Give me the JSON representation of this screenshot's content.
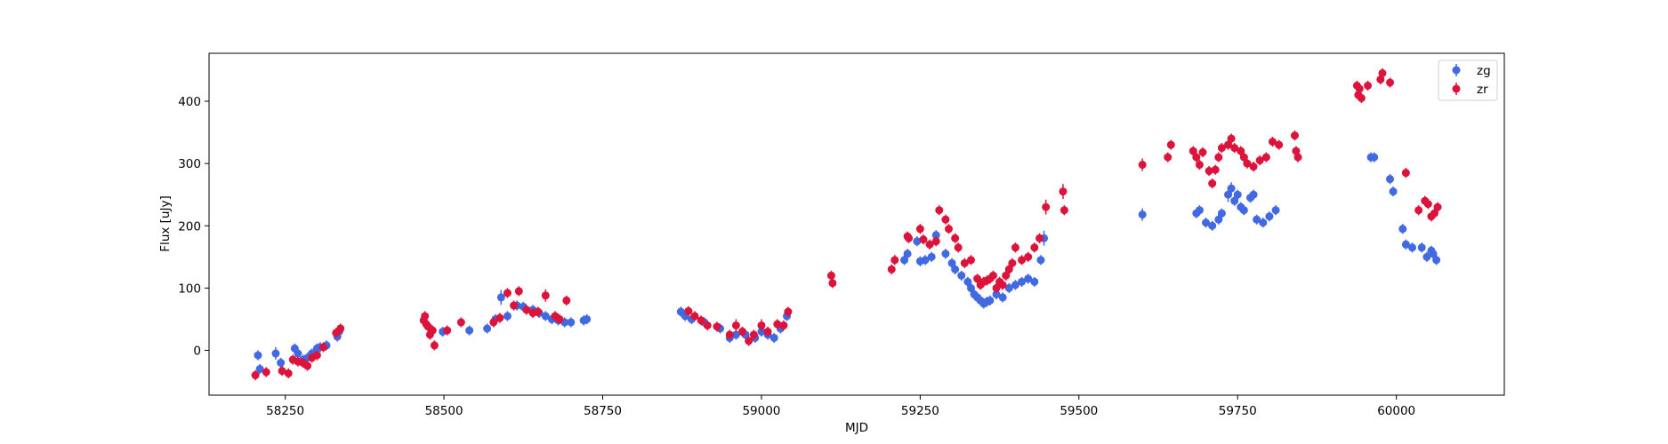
{
  "chart_data": {
    "type": "scatter",
    "title": "",
    "xlabel": "MJD",
    "ylabel": "Flux [uJy]",
    "xlim": [
      58130,
      60170
    ],
    "ylim": [
      -72,
      477
    ],
    "xticks": [
      58250,
      58500,
      58750,
      59000,
      59250,
      59500,
      59750,
      60000
    ],
    "yticks": [
      0,
      100,
      200,
      300,
      400
    ],
    "grid": false,
    "legend_position": "top-right",
    "series": [
      {
        "name": "zg",
        "color": "#4169e1",
        "marker": "circle-errorbar",
        "x": [
          58207,
          58210,
          58235,
          58243,
          58265,
          58270,
          58278,
          58285,
          58292,
          58300,
          58305,
          58315,
          58332,
          58335,
          58498,
          58540,
          58568,
          58581,
          58590,
          58600,
          58615,
          58625,
          58640,
          58650,
          58660,
          58670,
          58680,
          58690,
          58700,
          58720,
          58725,
          58873,
          58880,
          58890,
          58910,
          58935,
          58950,
          58960,
          58970,
          58975,
          58990,
          59000,
          59010,
          59020,
          59030,
          59040,
          59225,
          59230,
          59245,
          59250,
          59258,
          59268,
          59275,
          59290,
          59300,
          59305,
          59315,
          59325,
          59330,
          59335,
          59340,
          59345,
          59350,
          59355,
          59360,
          59370,
          59380,
          59390,
          59400,
          59410,
          59420,
          59430,
          59440,
          59445,
          59600,
          59685,
          59690,
          59700,
          59710,
          59720,
          59725,
          59735,
          59740,
          59745,
          59750,
          59755,
          59760,
          59770,
          59775,
          59780,
          59790,
          59800,
          59810,
          59960,
          59965,
          59990,
          59995,
          60010,
          60015,
          60025,
          60040,
          60048,
          60055,
          60058,
          60063
        ],
        "y": [
          -8,
          -30,
          -5,
          -20,
          3,
          -5,
          -15,
          -12,
          -5,
          3,
          5,
          8,
          22,
          30,
          30,
          32,
          35,
          50,
          85,
          55,
          72,
          70,
          65,
          60,
          55,
          50,
          48,
          45,
          45,
          48,
          50,
          62,
          55,
          50,
          45,
          35,
          20,
          25,
          30,
          25,
          20,
          30,
          25,
          20,
          35,
          55,
          145,
          155,
          175,
          143,
          145,
          150,
          185,
          155,
          140,
          130,
          120,
          110,
          100,
          90,
          85,
          80,
          75,
          78,
          80,
          90,
          85,
          100,
          105,
          110,
          115,
          110,
          145,
          180,
          218,
          220,
          225,
          205,
          200,
          210,
          220,
          250,
          260,
          240,
          250,
          230,
          225,
          245,
          250,
          210,
          205,
          215,
          225,
          310,
          310,
          275,
          255,
          195,
          170,
          165,
          165,
          150,
          160,
          155,
          145
        ],
        "err": [
          8,
          8,
          10,
          8,
          8,
          8,
          8,
          8,
          8,
          8,
          8,
          8,
          8,
          8,
          8,
          8,
          8,
          8,
          12,
          8,
          8,
          8,
          8,
          8,
          8,
          8,
          8,
          8,
          8,
          8,
          8,
          8,
          8,
          8,
          8,
          8,
          8,
          8,
          8,
          8,
          8,
          8,
          8,
          8,
          8,
          8,
          8,
          8,
          8,
          8,
          8,
          8,
          8,
          8,
          8,
          8,
          8,
          8,
          8,
          8,
          8,
          8,
          8,
          8,
          8,
          8,
          8,
          8,
          8,
          8,
          8,
          8,
          8,
          12,
          10,
          8,
          8,
          8,
          8,
          8,
          8,
          12,
          10,
          8,
          8,
          8,
          8,
          8,
          8,
          8,
          8,
          8,
          8,
          8,
          8,
          8,
          8,
          8,
          8,
          8,
          8,
          8,
          8,
          8,
          8
        ]
      },
      {
        "name": "zr",
        "color": "#dc143c",
        "marker": "circle-errorbar",
        "x": [
          58203,
          58220,
          58245,
          58255,
          58262,
          58270,
          58278,
          58285,
          58292,
          58300,
          58310,
          58330,
          58337,
          58468,
          58470,
          58472,
          58475,
          58478,
          58482,
          58485,
          58505,
          58527,
          58578,
          58588,
          58600,
          58610,
          58618,
          58630,
          58640,
          58648,
          58660,
          58675,
          58682,
          58693,
          58885,
          58895,
          58905,
          58915,
          58930,
          58950,
          58960,
          58970,
          58980,
          58988,
          59000,
          59010,
          59025,
          59035,
          59042,
          59110,
          59112,
          59205,
          59210,
          59230,
          59232,
          59250,
          59255,
          59265,
          59275,
          59280,
          59290,
          59295,
          59305,
          59310,
          59320,
          59330,
          59340,
          59345,
          59350,
          59355,
          59360,
          59365,
          59370,
          59375,
          59380,
          59385,
          59390,
          59395,
          59400,
          59410,
          59420,
          59430,
          59438,
          59448,
          59475,
          59477,
          59600,
          59640,
          59645,
          59680,
          59685,
          59690,
          59695,
          59705,
          59710,
          59715,
          59720,
          59725,
          59735,
          59740,
          59745,
          59755,
          59760,
          59765,
          59775,
          59785,
          59795,
          59805,
          59815,
          59840,
          59842,
          59845,
          59938,
          59940,
          59942,
          59945,
          59955,
          59975,
          59978,
          59990,
          60015,
          60035,
          60045,
          60050,
          60055,
          60060,
          60065
        ],
        "y": [
          -40,
          -35,
          -33,
          -37,
          -15,
          -18,
          -20,
          -25,
          -12,
          -8,
          5,
          28,
          35,
          48,
          55,
          42,
          38,
          25,
          32,
          8,
          32,
          45,
          45,
          52,
          92,
          72,
          95,
          65,
          60,
          62,
          88,
          55,
          50,
          80,
          63,
          55,
          48,
          40,
          38,
          25,
          40,
          30,
          15,
          25,
          40,
          30,
          42,
          40,
          62,
          120,
          108,
          130,
          145,
          183,
          180,
          195,
          178,
          170,
          175,
          225,
          210,
          195,
          180,
          165,
          140,
          145,
          115,
          105,
          110,
          112,
          115,
          120,
          100,
          110,
          105,
          120,
          130,
          140,
          165,
          145,
          150,
          165,
          180,
          230,
          255,
          225,
          298,
          310,
          330,
          320,
          310,
          298,
          318,
          288,
          268,
          290,
          310,
          325,
          330,
          340,
          325,
          320,
          310,
          300,
          295,
          305,
          310,
          335,
          330,
          345,
          320,
          310,
          425,
          410,
          420,
          405,
          425,
          435,
          445,
          430,
          285,
          225,
          240,
          235,
          215,
          220,
          230
        ],
        "err": [
          8,
          8,
          8,
          8,
          8,
          8,
          8,
          8,
          8,
          8,
          8,
          8,
          8,
          8,
          8,
          8,
          8,
          8,
          8,
          8,
          8,
          8,
          8,
          8,
          8,
          8,
          8,
          8,
          8,
          8,
          10,
          8,
          8,
          8,
          8,
          8,
          8,
          8,
          8,
          8,
          10,
          8,
          8,
          8,
          10,
          8,
          8,
          8,
          8,
          8,
          8,
          8,
          8,
          8,
          8,
          8,
          8,
          8,
          8,
          8,
          8,
          8,
          8,
          8,
          8,
          8,
          8,
          8,
          8,
          8,
          8,
          8,
          8,
          8,
          8,
          8,
          8,
          8,
          8,
          8,
          8,
          8,
          8,
          12,
          12,
          8,
          10,
          8,
          8,
          8,
          8,
          8,
          8,
          8,
          8,
          8,
          8,
          8,
          8,
          8,
          8,
          8,
          8,
          8,
          8,
          8,
          8,
          8,
          8,
          8,
          8,
          8,
          8,
          8,
          8,
          8,
          8,
          8,
          8,
          8,
          8,
          8,
          8,
          8,
          8,
          8,
          8
        ]
      }
    ]
  }
}
